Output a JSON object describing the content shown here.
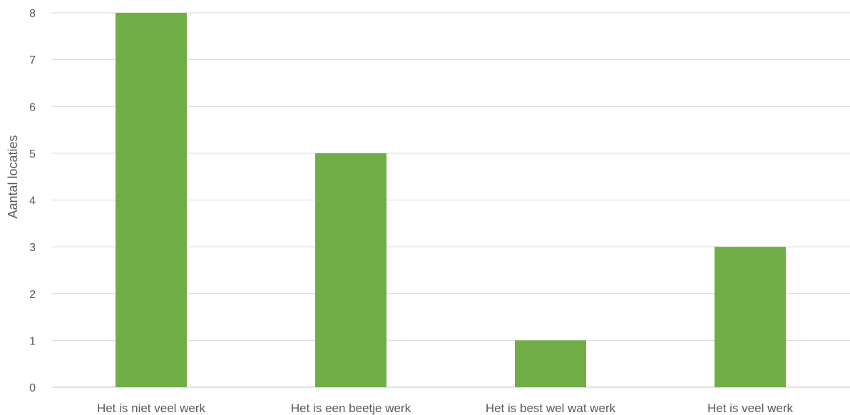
{
  "chart_data": {
    "type": "bar",
    "title": "",
    "xlabel": "",
    "ylabel": "Aantal locaties",
    "categories": [
      "Het is niet veel werk",
      "Het is een beetje werk",
      "Het is best wel wat werk",
      "Het is veel werk"
    ],
    "values": [
      8,
      5,
      1,
      3
    ],
    "ylim": [
      0,
      8
    ],
    "yticks": [
      "0",
      "1",
      "2",
      "3",
      "4",
      "5",
      "6",
      "7",
      "8"
    ],
    "grid": true,
    "legend": "none",
    "bar_color": "#70ad47",
    "grid_color": "#d9d9d9",
    "text_color": "#595959"
  }
}
